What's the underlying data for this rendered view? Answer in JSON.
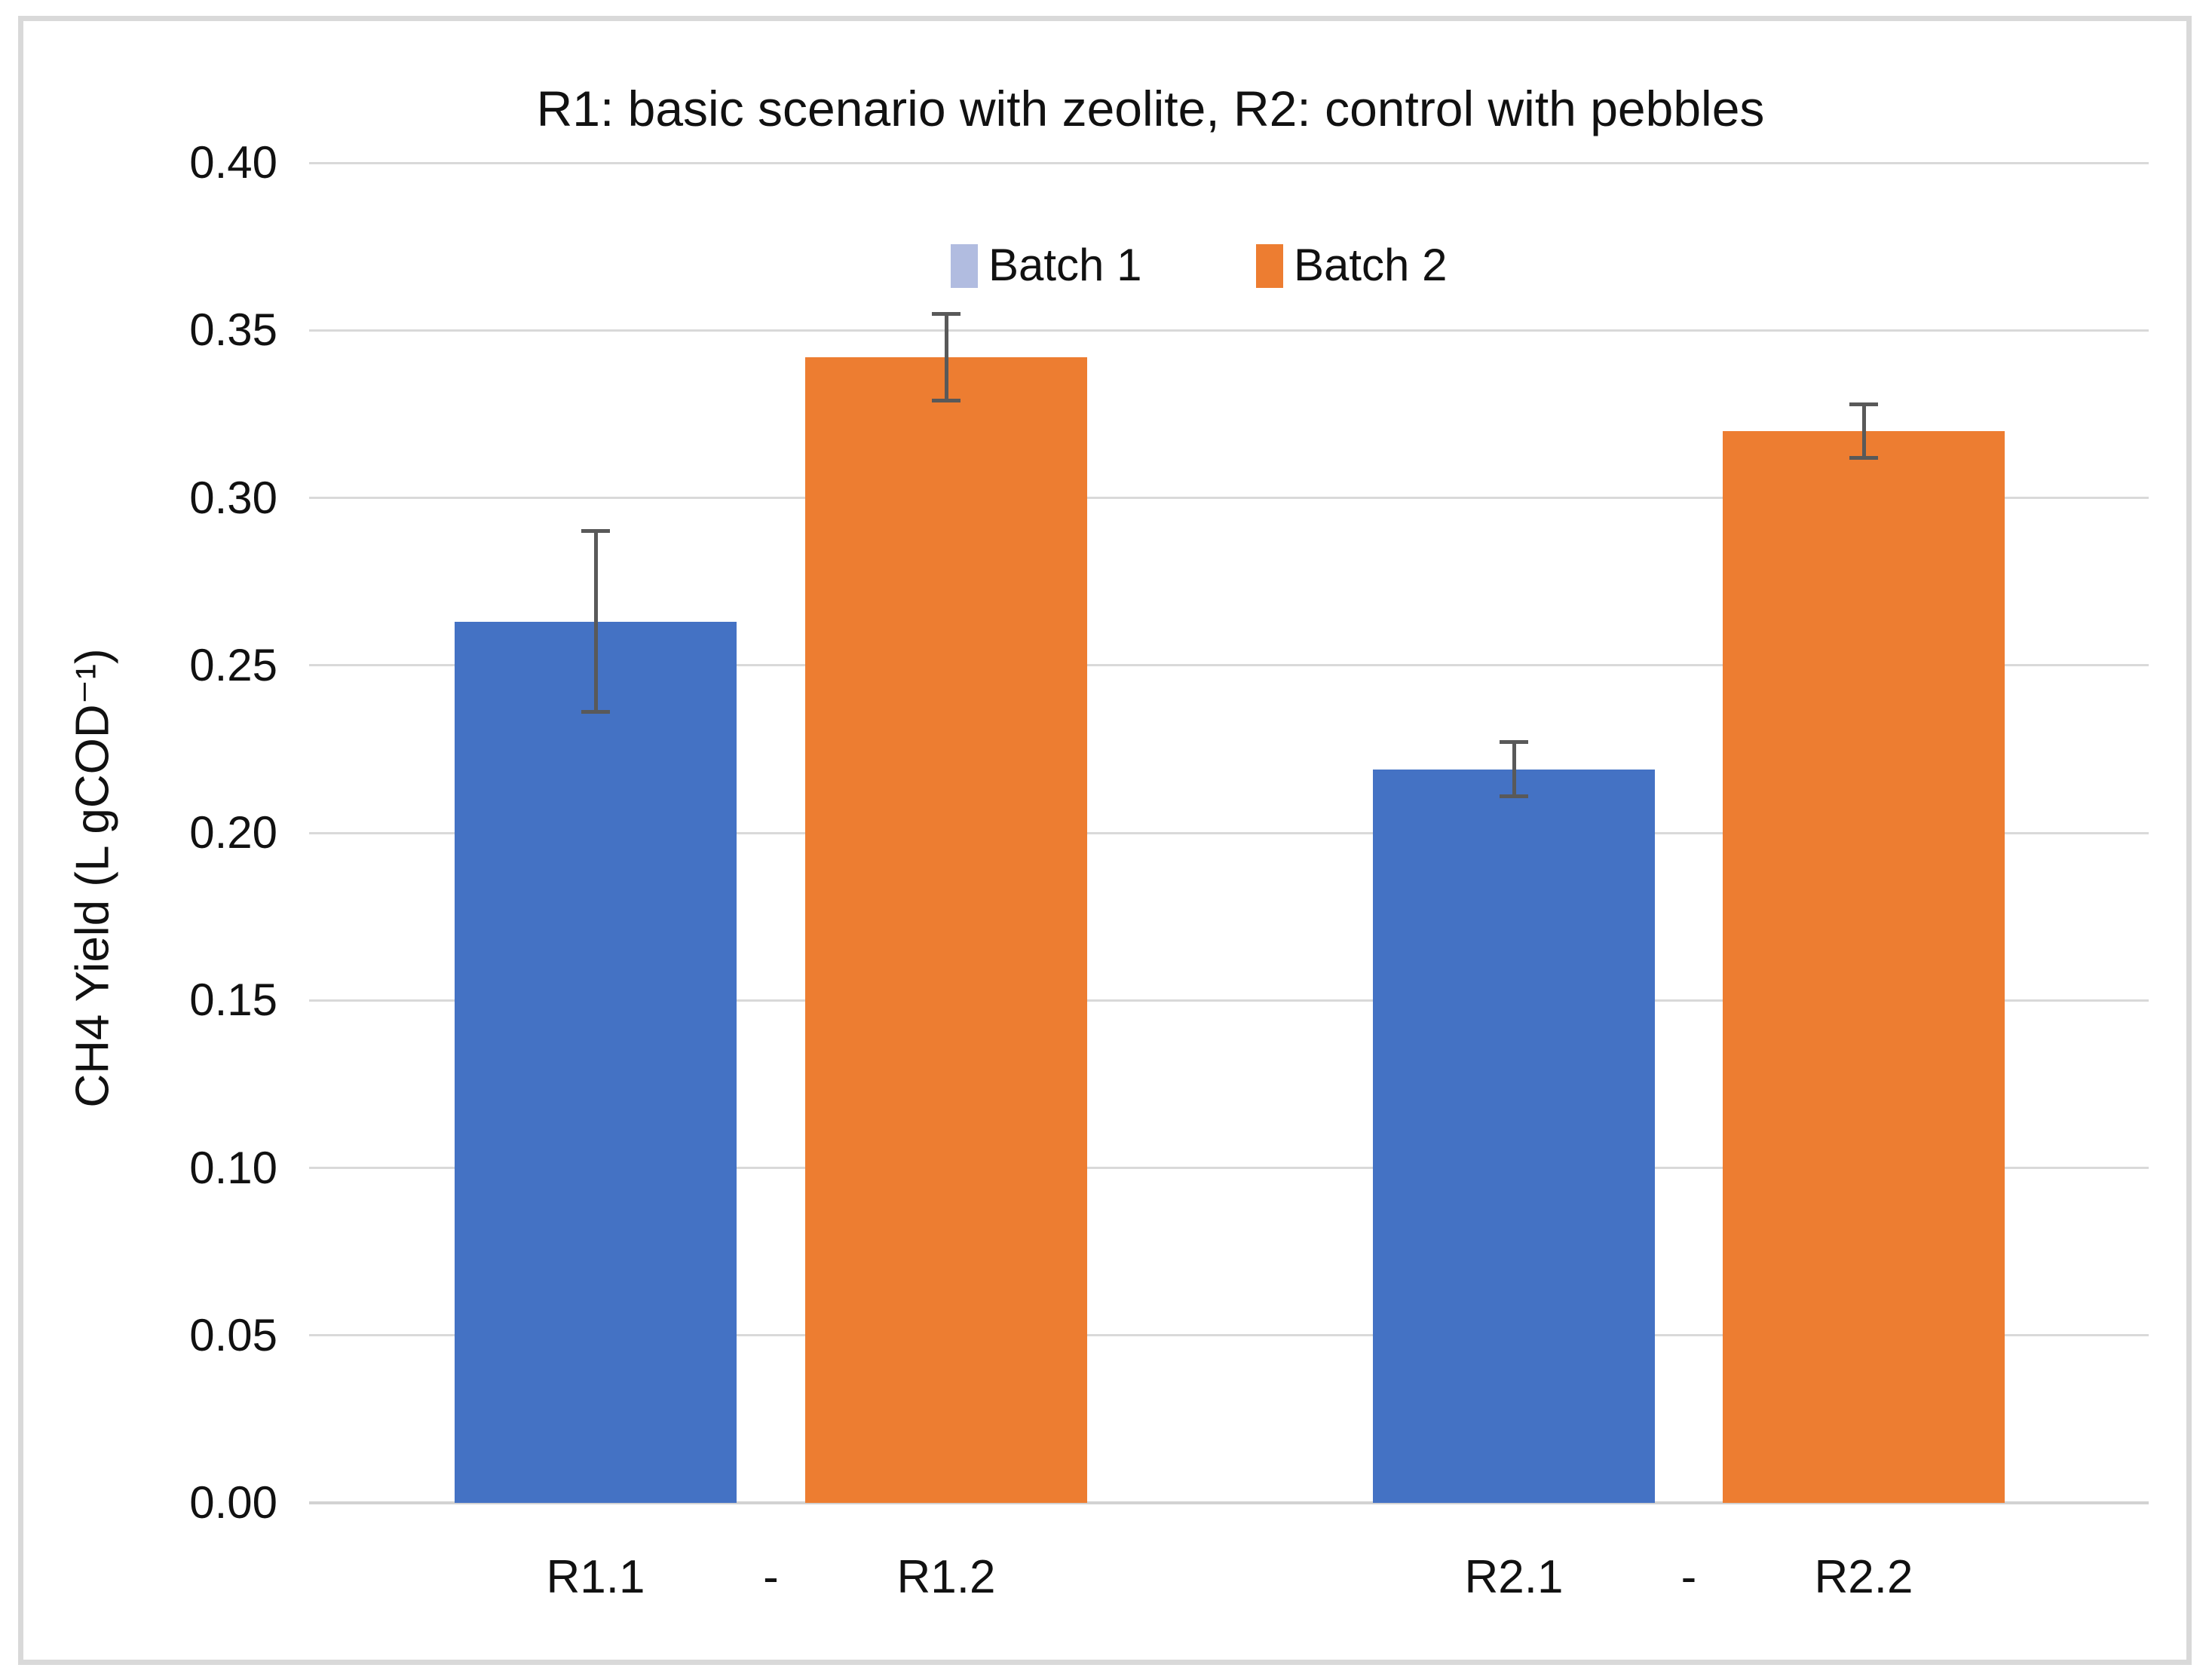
{
  "chart_data": {
    "type": "bar",
    "title": "R1: basic scenario with zeolite, R2: control with pebbles",
    "ylabel": "CH4 Yield (L gCOD⁻¹)",
    "ylim": [
      0,
      0.4
    ],
    "ytick_interval": 0.05,
    "ytick_labels": [
      "0.00",
      "0.05",
      "0.10",
      "0.15",
      "0.20",
      "0.25",
      "0.30",
      "0.35",
      "0.40"
    ],
    "grid": true,
    "legend_position": "top-center",
    "series": [
      {
        "name": "Batch 1",
        "bar_color": "#4472c4",
        "legend_swatch_color": "#b1bce0"
      },
      {
        "name": "Batch 2",
        "bar_color": "#ed7d31",
        "legend_swatch_color": "#ed7d31"
      }
    ],
    "groups": [
      {
        "x_labels": [
          "R1.1",
          "-",
          "R1.2"
        ],
        "bars": [
          {
            "series": "Batch 1",
            "value": 0.263,
            "error": 0.027
          },
          {
            "series": "Batch 2",
            "value": 0.342,
            "error": 0.013
          }
        ]
      },
      {
        "x_labels": [
          "R2.1",
          "-",
          "R2.2"
        ],
        "bars": [
          {
            "series": "Batch 1",
            "value": 0.219,
            "error": 0.008
          },
          {
            "series": "Batch 2",
            "value": 0.32,
            "error": 0.008
          }
        ]
      }
    ],
    "colors": {
      "gridline": "#d9d9d9",
      "baseline": "#d2d2d2",
      "error_bar": "#595959",
      "frame": "#d9d9d9",
      "text": "#111111"
    }
  }
}
